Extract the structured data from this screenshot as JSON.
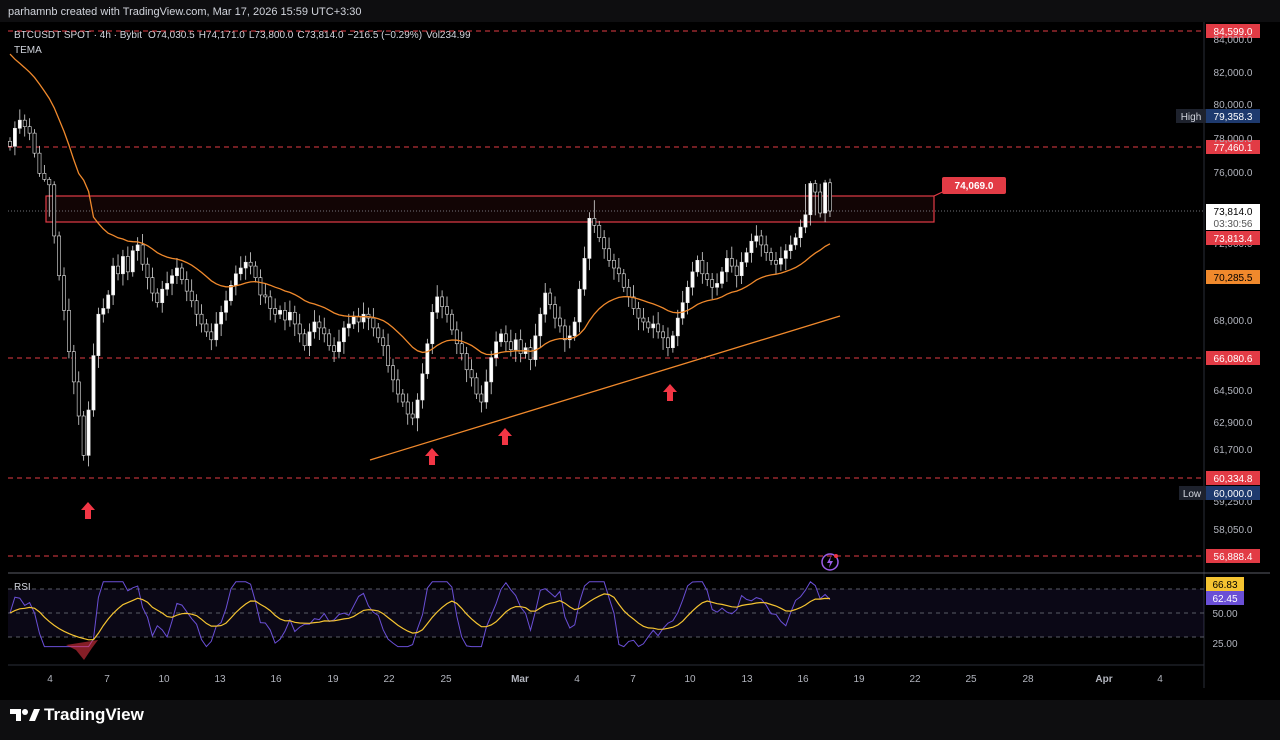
{
  "header": {
    "caption": "parhamnb created with TradingView.com, Mar 17, 2026 15:59 UTC+3:30"
  },
  "legend": {
    "symbol": "BTCUSDT SPOT · 4h · Bybit",
    "open": "O74,030.5",
    "high": "H74,171.0",
    "low": "L73,800.0",
    "close": "C73,814.0",
    "change": "−216.5 (−0.29%)",
    "volume": "Vol234.99",
    "indicator": "TEMA"
  },
  "rsi_panel": {
    "label": "RSI",
    "value_yellow": "66.83",
    "value_purple": "62.45"
  },
  "footer": {
    "brand": "TradingView"
  },
  "colors": {
    "background": "#000000",
    "candle": "#e6e6e6",
    "level_line": "#e23b45",
    "tema": "#f0892c",
    "trendline": "#f0892c",
    "rsi_line": "#6a4fd6",
    "rsi_signal": "#f5c431",
    "high_tag": "#1e3a6e",
    "arrow": "#f23645"
  },
  "chart_data": {
    "type": "candlestick",
    "symbol": "BTCUSDT",
    "timeframe": "4h",
    "y_axis_ticks": [
      "84,000.0",
      "82,000.0",
      "80,000.0",
      "78,000.0",
      "76,000.0",
      "72,000.0",
      "68,000.0",
      "64,500.0",
      "62,900.0",
      "61,700.0",
      "59,250.0",
      "58,050.0"
    ],
    "x_axis_ticks": [
      "4",
      "7",
      "10",
      "13",
      "16",
      "19",
      "22",
      "25",
      "Mar",
      "4",
      "7",
      "10",
      "13",
      "16",
      "19",
      "22",
      "25",
      "28",
      "Apr",
      "4"
    ],
    "horizontal_levels": [
      "84,599.0",
      "77,460.1",
      "66,080.6",
      "60,334.8",
      "56,888.4"
    ],
    "price_tags": {
      "high_label": "High",
      "high_value": "79,358.3",
      "low_label": "Low",
      "low_value": "60,000.0",
      "last_price": "73,814.0",
      "countdown": "03:30:56",
      "red_tag": "73,813.4",
      "orange_tag": "70,285.5",
      "zone_callout": "74,069.0"
    },
    "resistance_zone": {
      "low": 73300,
      "high": 74800
    },
    "rsi_ticks": [
      "50.00",
      "25.00"
    ],
    "close_series": [
      77500,
      78600,
      79100,
      78700,
      78300,
      77100,
      75800,
      74900,
      74100,
      72400,
      70300,
      68500,
      66400,
      64900,
      63200,
      61400,
      63500,
      66200,
      68300,
      68600,
      69300,
      70800,
      70400,
      71300,
      70500,
      71600,
      71900,
      70900,
      70200,
      69400,
      68900,
      69600,
      69900,
      70300,
      70700,
      70100,
      69500,
      69000,
      68300,
      67800,
      67400,
      67000,
      67800,
      68400,
      69000,
      69800,
      70400,
      70700,
      71000,
      70800,
      70200,
      69300,
      69200,
      68600,
      68300,
      68500,
      68000,
      68400,
      67800,
      67300,
      66700,
      67400,
      67900,
      67600,
      67300,
      66700,
      66400,
      66900,
      67600,
      67800,
      68200,
      67900,
      68300,
      68100,
      67600,
      67100,
      66700,
      65700,
      65000,
      64300,
      63900,
      63300,
      63100,
      64000,
      65300,
      66800,
      68400,
      69200,
      68700,
      68300,
      67500,
      66800,
      66300,
      65500,
      65100,
      64300,
      63900,
      64900,
      66100,
      66900,
      67300,
      66900,
      66500,
      67000,
      66300,
      66600,
      66000,
      67200,
      68300,
      69400,
      68800,
      68100,
      67700,
      67000,
      67200,
      67900,
      69600,
      71200,
      73400,
      73000,
      72300,
      71700,
      71100,
      70700,
      70400,
      69700,
      69200,
      68600,
      68100,
      67900,
      67600,
      67800,
      67400,
      67100,
      66600,
      67200,
      68100,
      68900,
      69700,
      70500,
      71100,
      70400,
      70100,
      69700,
      69900,
      70500,
      71200,
      70800,
      70300,
      71000,
      71500,
      72100,
      72400,
      71900,
      71500,
      71100,
      70900,
      71200,
      71600,
      71900,
      72300,
      72900,
      73600,
      74300,
      74000,
      73700,
      74400,
      73814
    ]
  }
}
